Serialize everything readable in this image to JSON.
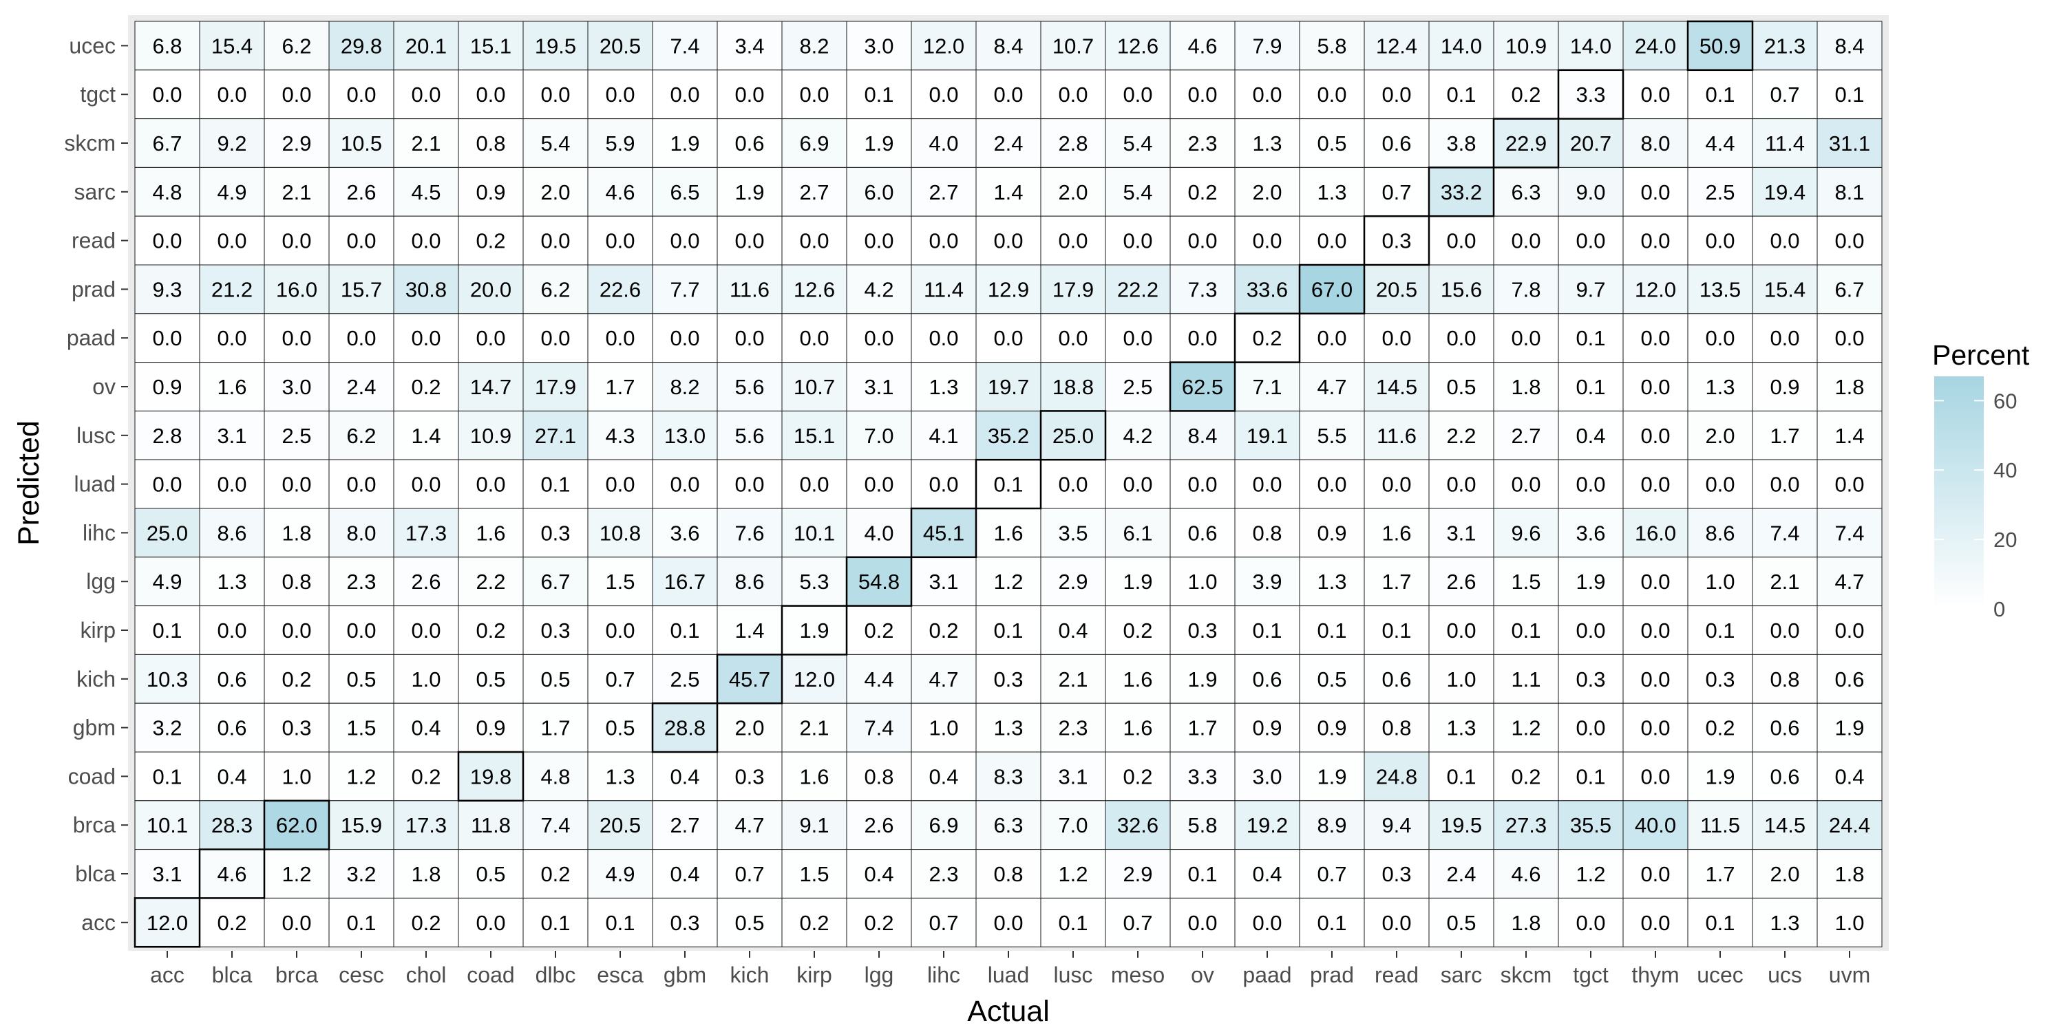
{
  "chart_data": {
    "type": "heatmap",
    "xlabel": "Actual",
    "ylabel": "Predicted",
    "legend": {
      "title": "Percent",
      "ticks": [
        0,
        20,
        40,
        60
      ],
      "range": [
        0,
        67
      ],
      "placement": "right"
    },
    "colors": {
      "low": "#ffffff",
      "high": "#a7d5e2",
      "panel": "#ebebeb",
      "diagonal_border": "#000000"
    },
    "x_categories": [
      "acc",
      "blca",
      "brca",
      "cesc",
      "chol",
      "coad",
      "dlbc",
      "esca",
      "gbm",
      "kich",
      "kirp",
      "lgg",
      "lihc",
      "luad",
      "lusc",
      "meso",
      "ov",
      "paad",
      "prad",
      "read",
      "sarc",
      "skcm",
      "tgct",
      "thym",
      "ucec",
      "ucs",
      "uvm"
    ],
    "y_categories": [
      "ucec",
      "tgct",
      "skcm",
      "sarc",
      "read",
      "prad",
      "paad",
      "ov",
      "lusc",
      "luad",
      "lihc",
      "lgg",
      "kirp",
      "kich",
      "gbm",
      "coad",
      "brca",
      "blca",
      "acc"
    ],
    "outlined_cells": [
      [
        "ucec",
        "ucec"
      ],
      [
        "tgct",
        "tgct"
      ],
      [
        "skcm",
        "skcm"
      ],
      [
        "sarc",
        "sarc"
      ],
      [
        "read",
        "read"
      ],
      [
        "prad",
        "prad"
      ],
      [
        "paad",
        "paad"
      ],
      [
        "ov",
        "ov"
      ],
      [
        "lusc",
        "lusc"
      ],
      [
        "luad",
        "luad"
      ],
      [
        "lihc",
        "lihc"
      ],
      [
        "lgg",
        "lgg"
      ],
      [
        "kirp",
        "kirp"
      ],
      [
        "kich",
        "kich"
      ],
      [
        "gbm",
        "gbm"
      ],
      [
        "coad",
        "coad"
      ],
      [
        "brca",
        "brca"
      ],
      [
        "blca",
        "blca"
      ],
      [
        "acc",
        "acc"
      ]
    ],
    "values": [
      [
        "6.8",
        "15.4",
        "6.2",
        "29.8",
        "20.1",
        "15.1",
        "19.5",
        "20.5",
        "7.4",
        "3.4",
        "8.2",
        "3.0",
        "12.0",
        "8.4",
        "10.7",
        "12.6",
        "4.6",
        "7.9",
        "5.8",
        "12.4",
        "14.0",
        "10.9",
        "14.0",
        "24.0",
        "50.9",
        "21.3",
        "8.4"
      ],
      [
        "0.0",
        "0.0",
        "0.0",
        "0.0",
        "0.0",
        "0.0",
        "0.0",
        "0.0",
        "0.0",
        "0.0",
        "0.0",
        "0.1",
        "0.0",
        "0.0",
        "0.0",
        "0.0",
        "0.0",
        "0.0",
        "0.0",
        "0.0",
        "0.1",
        "0.2",
        "3.3",
        "0.0",
        "0.1",
        "0.7",
        "0.1"
      ],
      [
        "6.7",
        "9.2",
        "2.9",
        "10.5",
        "2.1",
        "0.8",
        "5.4",
        "5.9",
        "1.9",
        "0.6",
        "6.9",
        "1.9",
        "4.0",
        "2.4",
        "2.8",
        "5.4",
        "2.3",
        "1.3",
        "0.5",
        "0.6",
        "3.8",
        "22.9",
        "20.7",
        "8.0",
        "4.4",
        "11.4",
        "31.1"
      ],
      [
        "4.8",
        "4.9",
        "2.1",
        "2.6",
        "4.5",
        "0.9",
        "2.0",
        "4.6",
        "6.5",
        "1.9",
        "2.7",
        "6.0",
        "2.7",
        "1.4",
        "2.0",
        "5.4",
        "0.2",
        "2.0",
        "1.3",
        "0.7",
        "33.2",
        "6.3",
        "9.0",
        "0.0",
        "2.5",
        "19.4",
        "8.1"
      ],
      [
        "0.0",
        "0.0",
        "0.0",
        "0.0",
        "0.0",
        "0.2",
        "0.0",
        "0.0",
        "0.0",
        "0.0",
        "0.0",
        "0.0",
        "0.0",
        "0.0",
        "0.0",
        "0.0",
        "0.0",
        "0.0",
        "0.0",
        "0.3",
        "0.0",
        "0.0",
        "0.0",
        "0.0",
        "0.0",
        "0.0",
        "0.0"
      ],
      [
        "9.3",
        "21.2",
        "16.0",
        "15.7",
        "30.8",
        "20.0",
        "6.2",
        "22.6",
        "7.7",
        "11.6",
        "12.6",
        "4.2",
        "11.4",
        "12.9",
        "17.9",
        "22.2",
        "7.3",
        "33.6",
        "67.0",
        "20.5",
        "15.6",
        "7.8",
        "9.7",
        "12.0",
        "13.5",
        "15.4",
        "6.7"
      ],
      [
        "0.0",
        "0.0",
        "0.0",
        "0.0",
        "0.0",
        "0.0",
        "0.0",
        "0.0",
        "0.0",
        "0.0",
        "0.0",
        "0.0",
        "0.0",
        "0.0",
        "0.0",
        "0.0",
        "0.0",
        "0.2",
        "0.0",
        "0.0",
        "0.0",
        "0.0",
        "0.1",
        "0.0",
        "0.0",
        "0.0",
        "0.0"
      ],
      [
        "0.9",
        "1.6",
        "3.0",
        "2.4",
        "0.2",
        "14.7",
        "17.9",
        "1.7",
        "8.2",
        "5.6",
        "10.7",
        "3.1",
        "1.3",
        "19.7",
        "18.8",
        "2.5",
        "62.5",
        "7.1",
        "4.7",
        "14.5",
        "0.5",
        "1.8",
        "0.1",
        "0.0",
        "1.3",
        "0.9",
        "1.8"
      ],
      [
        "2.8",
        "3.1",
        "2.5",
        "6.2",
        "1.4",
        "10.9",
        "27.1",
        "4.3",
        "13.0",
        "5.6",
        "15.1",
        "7.0",
        "4.1",
        "35.2",
        "25.0",
        "4.2",
        "8.4",
        "19.1",
        "5.5",
        "11.6",
        "2.2",
        "2.7",
        "0.4",
        "0.0",
        "2.0",
        "1.7",
        "1.4"
      ],
      [
        "0.0",
        "0.0",
        "0.0",
        "0.0",
        "0.0",
        "0.0",
        "0.1",
        "0.0",
        "0.0",
        "0.0",
        "0.0",
        "0.0",
        "0.0",
        "0.1",
        "0.0",
        "0.0",
        "0.0",
        "0.0",
        "0.0",
        "0.0",
        "0.0",
        "0.0",
        "0.0",
        "0.0",
        "0.0",
        "0.0",
        "0.0"
      ],
      [
        "25.0",
        "8.6",
        "1.8",
        "8.0",
        "17.3",
        "1.6",
        "0.3",
        "10.8",
        "3.6",
        "7.6",
        "10.1",
        "4.0",
        "45.1",
        "1.6",
        "3.5",
        "6.1",
        "0.6",
        "0.8",
        "0.9",
        "1.6",
        "3.1",
        "9.6",
        "3.6",
        "16.0",
        "8.6",
        "7.4",
        "7.4"
      ],
      [
        "4.9",
        "1.3",
        "0.8",
        "2.3",
        "2.6",
        "2.2",
        "6.7",
        "1.5",
        "16.7",
        "8.6",
        "5.3",
        "54.8",
        "3.1",
        "1.2",
        "2.9",
        "1.9",
        "1.0",
        "3.9",
        "1.3",
        "1.7",
        "2.6",
        "1.5",
        "1.9",
        "0.0",
        "1.0",
        "2.1",
        "4.7"
      ],
      [
        "0.1",
        "0.0",
        "0.0",
        "0.0",
        "0.0",
        "0.2",
        "0.3",
        "0.0",
        "0.1",
        "1.4",
        "1.9",
        "0.2",
        "0.2",
        "0.1",
        "0.4",
        "0.2",
        "0.3",
        "0.1",
        "0.1",
        "0.1",
        "0.0",
        "0.1",
        "0.0",
        "0.0",
        "0.1",
        "0.0",
        "0.0"
      ],
      [
        "10.3",
        "0.6",
        "0.2",
        "0.5",
        "1.0",
        "0.5",
        "0.5",
        "0.7",
        "2.5",
        "45.7",
        "12.0",
        "4.4",
        "4.7",
        "0.3",
        "2.1",
        "1.6",
        "1.9",
        "0.6",
        "0.5",
        "0.6",
        "1.0",
        "1.1",
        "0.3",
        "0.0",
        "0.3",
        "0.8",
        "0.6"
      ],
      [
        "3.2",
        "0.6",
        "0.3",
        "1.5",
        "0.4",
        "0.9",
        "1.7",
        "0.5",
        "28.8",
        "2.0",
        "2.1",
        "7.4",
        "1.0",
        "1.3",
        "2.3",
        "1.6",
        "1.7",
        "0.9",
        "0.9",
        "0.8",
        "1.3",
        "1.2",
        "0.0",
        "0.0",
        "0.2",
        "0.6",
        "1.9"
      ],
      [
        "0.1",
        "0.4",
        "1.0",
        "1.2",
        "0.2",
        "19.8",
        "4.8",
        "1.3",
        "0.4",
        "0.3",
        "1.6",
        "0.8",
        "0.4",
        "8.3",
        "3.1",
        "0.2",
        "3.3",
        "3.0",
        "1.9",
        "24.8",
        "0.1",
        "0.2",
        "0.1",
        "0.0",
        "1.9",
        "0.6",
        "0.4"
      ],
      [
        "10.1",
        "28.3",
        "62.0",
        "15.9",
        "17.3",
        "11.8",
        "7.4",
        "20.5",
        "2.7",
        "4.7",
        "9.1",
        "2.6",
        "6.9",
        "6.3",
        "7.0",
        "32.6",
        "5.8",
        "19.2",
        "8.9",
        "9.4",
        "19.5",
        "27.3",
        "35.5",
        "40.0",
        "11.5",
        "14.5",
        "24.4"
      ],
      [
        "3.1",
        "4.6",
        "1.2",
        "3.2",
        "1.8",
        "0.5",
        "0.2",
        "4.9",
        "0.4",
        "0.7",
        "1.5",
        "0.4",
        "2.3",
        "0.8",
        "1.2",
        "2.9",
        "0.1",
        "0.4",
        "0.7",
        "0.3",
        "2.4",
        "4.6",
        "1.2",
        "0.0",
        "1.7",
        "2.0",
        "1.8"
      ],
      [
        "12.0",
        "0.2",
        "0.0",
        "0.1",
        "0.2",
        "0.0",
        "0.1",
        "0.1",
        "0.3",
        "0.5",
        "0.2",
        "0.2",
        "0.7",
        "0.0",
        "0.1",
        "0.7",
        "0.0",
        "0.0",
        "0.1",
        "0.0",
        "0.5",
        "1.8",
        "0.0",
        "0.0",
        "0.1",
        "1.3",
        "1.0"
      ]
    ]
  }
}
